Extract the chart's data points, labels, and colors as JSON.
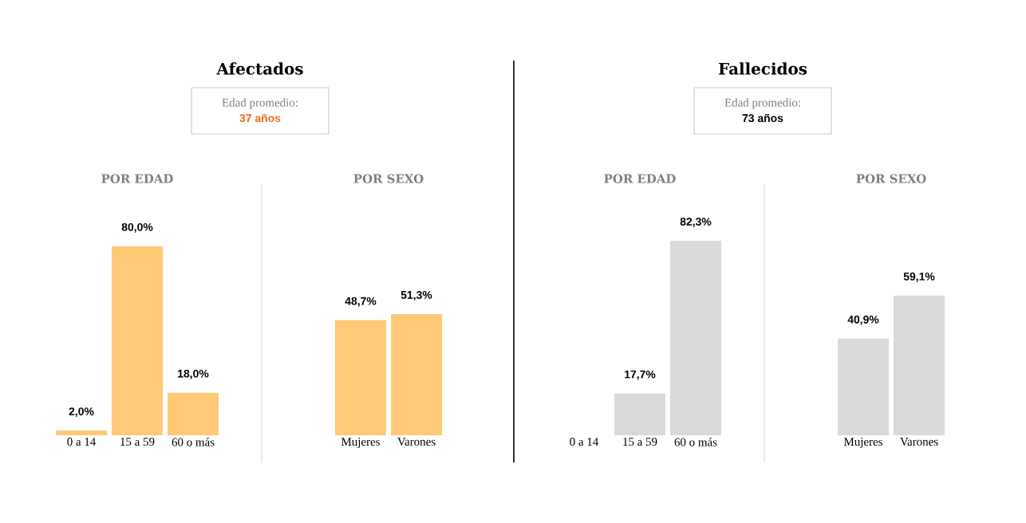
{
  "chart_data": [
    {
      "type": "other",
      "title": "Afectados",
      "subtitle": "Edad promedio:",
      "annotations": [
        "37 años"
      ],
      "color": "#f26a10"
    },
    {
      "type": "bar",
      "title": "POR EDAD",
      "categories": [
        "0 a 14",
        "15 a 59",
        "60 o más"
      ],
      "values": [
        2.0,
        80.0,
        18.0
      ],
      "value_labels": [
        "2,0%",
        "80,0%",
        "18,0%"
      ],
      "color": "#ffc978"
    },
    {
      "type": "bar",
      "title": "POR SEXO",
      "categories": [
        "Mujeres",
        "Varones"
      ],
      "values": [
        48.7,
        51.3
      ],
      "value_labels": [
        "48,7%",
        "51,3%"
      ],
      "color": "#ffc978"
    },
    {
      "type": "other",
      "title": "Fallecidos",
      "subtitle": "Edad promedio:",
      "annotations": [
        "73 años"
      ],
      "color": "#000000"
    },
    {
      "type": "bar",
      "title": "POR EDAD",
      "categories": [
        "0 a 14",
        "15 a 59",
        "60 o más"
      ],
      "values": [
        null,
        17.7,
        82.3
      ],
      "value_labels": [
        null,
        "17,7%",
        "82,3%"
      ],
      "color": "#d9d9d9"
    },
    {
      "type": "bar",
      "title": "POR SEXO",
      "categories": [
        "Mujeres",
        "Varones"
      ],
      "values": [
        40.9,
        59.1
      ],
      "value_labels": [
        "40,9%",
        "59,1%"
      ],
      "color": "#d9d9d9"
    }
  ]
}
